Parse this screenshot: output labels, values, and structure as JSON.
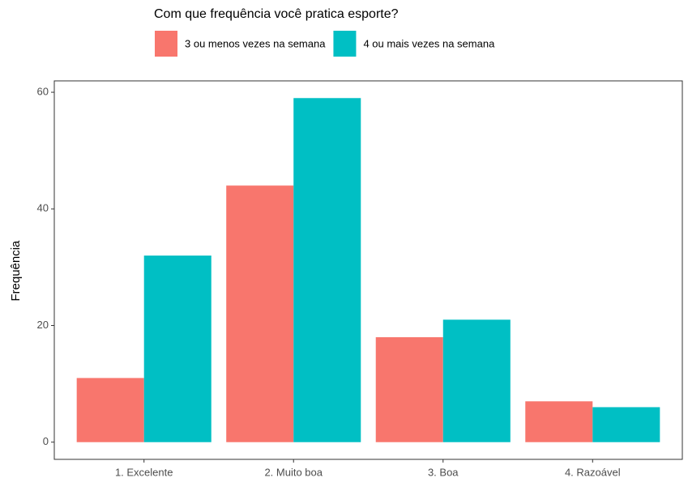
{
  "chart_data": {
    "type": "bar",
    "legend_title": "Com que frequência você pratica esporte?",
    "ylabel": "Frequência",
    "categories": [
      "1. Excelente",
      "2. Muito boa",
      "3. Boa",
      "4. Razoável"
    ],
    "series": [
      {
        "name": "3 ou menos vezes na semana",
        "color": "#f8766d",
        "values": [
          11,
          44,
          18,
          7
        ]
      },
      {
        "name": "4 ou mais vezes na semana",
        "color": "#00bfc4",
        "values": [
          32,
          59,
          21,
          6
        ]
      }
    ],
    "ylim": [
      -2.95,
      61.95
    ],
    "yticks": [
      0,
      20,
      40,
      60
    ],
    "legend": "top"
  }
}
